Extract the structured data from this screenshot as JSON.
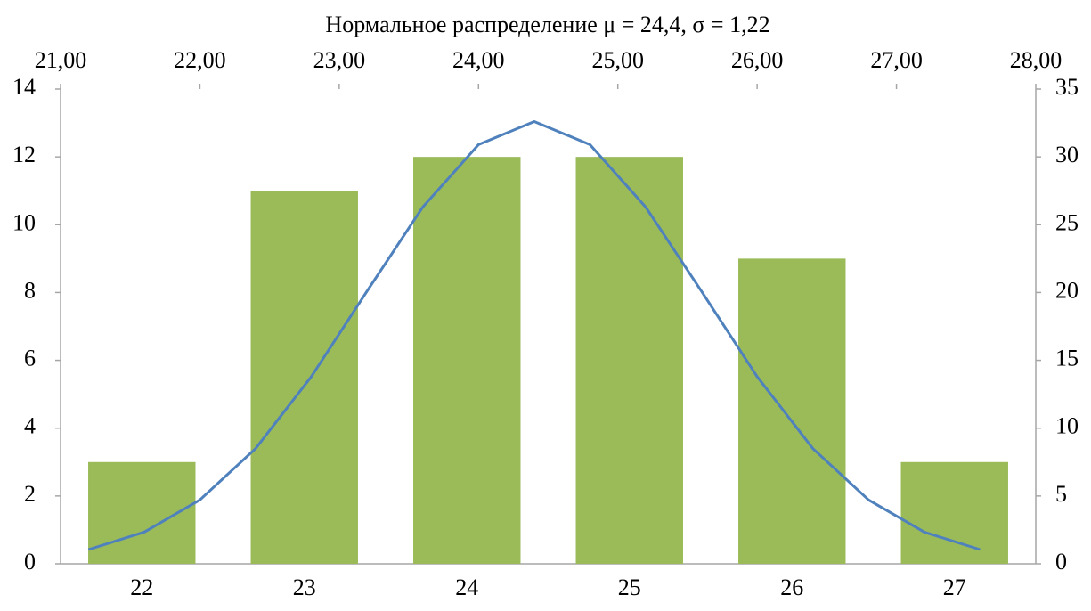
{
  "chart_data": {
    "type": "bar",
    "title": "Нормальное распределение μ = 24,4, σ = 1,22",
    "categories": [
      "22",
      "23",
      "24",
      "25",
      "26",
      "27"
    ],
    "values": [
      3,
      11,
      12,
      12,
      9,
      3
    ],
    "color": "#9bbb59",
    "ylim": [
      0,
      14
    ],
    "yticks": [
      0,
      2,
      4,
      6,
      8,
      10,
      12,
      14
    ],
    "y2lim": [
      0,
      35
    ],
    "y2ticks": [
      0,
      5,
      10,
      15,
      20,
      25,
      30,
      35
    ],
    "x2lim": [
      21,
      28
    ],
    "x2ticks": [
      {
        "value": 21,
        "label": "21,00"
      },
      {
        "value": 22,
        "label": "22,00"
      },
      {
        "value": 23,
        "label": "23,00"
      },
      {
        "value": 24,
        "label": "24,00"
      },
      {
        "value": 25,
        "label": "25,00"
      },
      {
        "value": 26,
        "label": "26,00"
      },
      {
        "value": 27,
        "label": "27,00"
      },
      {
        "value": 28,
        "label": "28,00"
      }
    ],
    "series": [
      {
        "type": "line",
        "color": "#4f81bd",
        "axis": "y2",
        "x": [
          21.2,
          21.6,
          22.0,
          22.4,
          22.8,
          23.2,
          23.6,
          24.0,
          24.4,
          24.8,
          25.2,
          25.6,
          26.0,
          26.4,
          26.8,
          27.2,
          27.6
        ],
        "values": [
          1.05,
          2.34,
          4.71,
          8.5,
          13.8,
          20.1,
          26.3,
          30.9,
          32.6,
          30.9,
          26.3,
          20.1,
          13.8,
          8.5,
          4.71,
          2.34,
          1.05
        ]
      }
    ]
  }
}
